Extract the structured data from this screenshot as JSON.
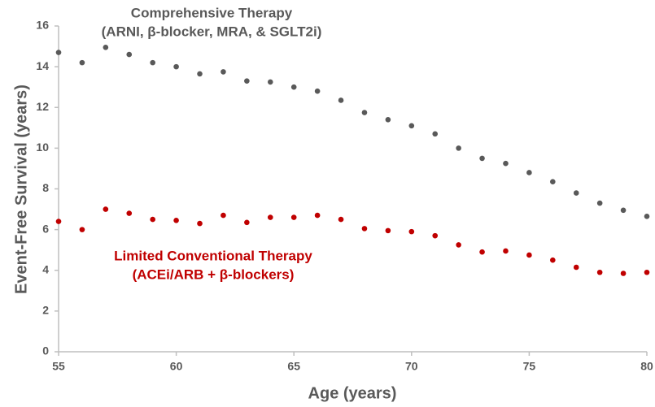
{
  "chart_data": {
    "type": "scatter",
    "xlabel": "Age (years)",
    "ylabel": "Event-Free Survival (years)",
    "x": [
      55,
      56,
      57,
      58,
      59,
      60,
      61,
      62,
      63,
      64,
      65,
      66,
      67,
      68,
      69,
      70,
      71,
      72,
      73,
      74,
      75,
      76,
      77,
      78,
      79,
      80
    ],
    "series": [
      {
        "label": [
          "Comprehensive Therapy",
          "(ARNI, β-blocker, MRA, & SGLT2i)"
        ],
        "color": "#595959",
        "values": [
          14.7,
          14.2,
          14.95,
          14.6,
          14.2,
          14.0,
          13.65,
          13.75,
          13.3,
          13.25,
          13.0,
          12.8,
          12.35,
          11.75,
          11.4,
          11.1,
          10.7,
          10.0,
          9.5,
          9.25,
          8.8,
          8.35,
          7.8,
          7.3,
          6.95,
          6.65
        ]
      },
      {
        "label": [
          "Limited Conventional Therapy",
          "(ACEi/ARB +  β-blockers)"
        ],
        "color": "#c00000",
        "values": [
          6.4,
          6.0,
          7.0,
          6.8,
          6.5,
          6.45,
          6.3,
          6.7,
          6.35,
          6.6,
          6.6,
          6.7,
          6.5,
          6.05,
          5.95,
          5.9,
          5.7,
          5.25,
          4.9,
          4.95,
          4.75,
          4.5,
          4.15,
          3.9,
          3.85,
          3.9
        ]
      }
    ],
    "xlim": [
      55,
      80
    ],
    "xticks": [
      55,
      60,
      65,
      70,
      75,
      80
    ],
    "ylim": [
      0,
      16
    ],
    "yticks": [
      0,
      2,
      4,
      6,
      8,
      10,
      12,
      14,
      16
    ],
    "grid": false
  }
}
